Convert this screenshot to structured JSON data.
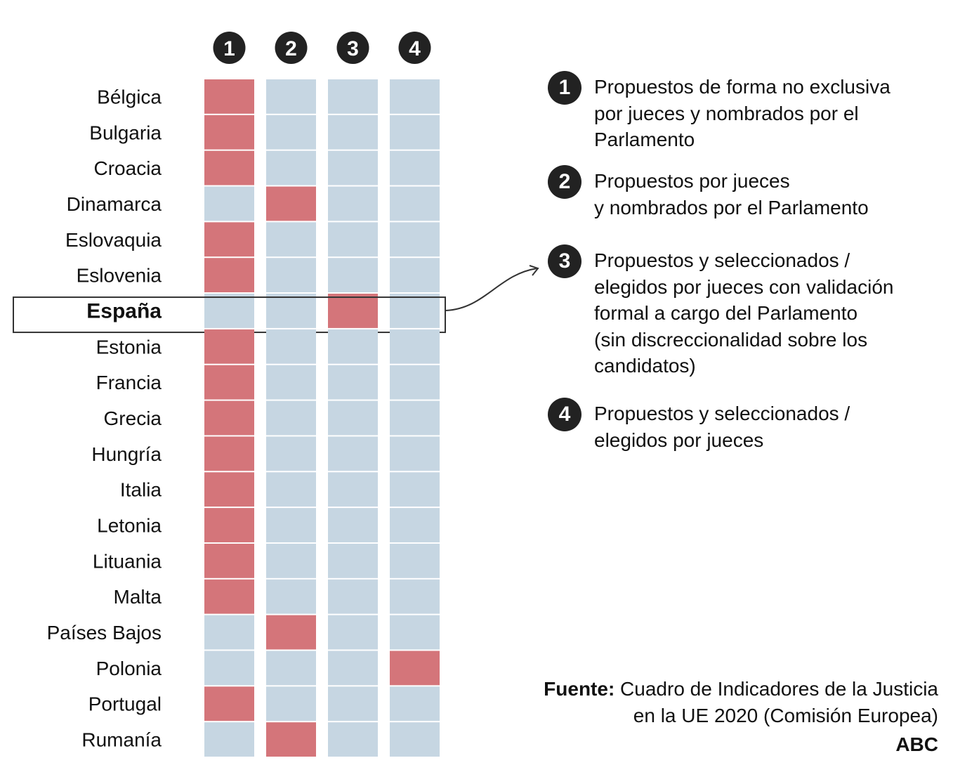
{
  "chart_data": {
    "type": "table",
    "columns": [
      "1",
      "2",
      "3",
      "4"
    ],
    "rows": [
      "Bélgica",
      "Bulgaria",
      "Croacia",
      "Dinamarca",
      "Eslovaquia",
      "Eslovenia",
      "España",
      "Estonia",
      "Francia",
      "Grecia",
      "Hungría",
      "Italia",
      "Letonia",
      "Lituania",
      "Malta",
      "Países Bajos",
      "Polonia",
      "Portugal",
      "Rumanía"
    ],
    "category": [
      1,
      1,
      1,
      2,
      1,
      1,
      3,
      1,
      1,
      1,
      1,
      1,
      1,
      1,
      1,
      2,
      4,
      1,
      2
    ],
    "highlighted_row": "España",
    "colors": {
      "selected": "#d4757a",
      "unselected": "#c6d6e2"
    }
  },
  "legend": [
    {
      "num": "1",
      "text": "Propuestos de forma no exclusiva\npor jueces y nombrados por el\nParlamento"
    },
    {
      "num": "2",
      "text": "Propuestos por jueces\ny nombrados por el Parlamento"
    },
    {
      "num": "3",
      "text": "Propuestos y seleccionados /\nelegidos por jueces con validación\nformal a cargo del Parlamento\n(sin discreccionalidad sobre los\ncandidatos)"
    },
    {
      "num": "4",
      "text": "Propuestos y seleccionados /\nelegidos por jueces"
    }
  ],
  "source": {
    "label": "Fuente:",
    "text": " Cuadro de Indicadores de la Justicia\nen la UE 2020 (Comisión Europea)"
  },
  "brand": "ABC"
}
